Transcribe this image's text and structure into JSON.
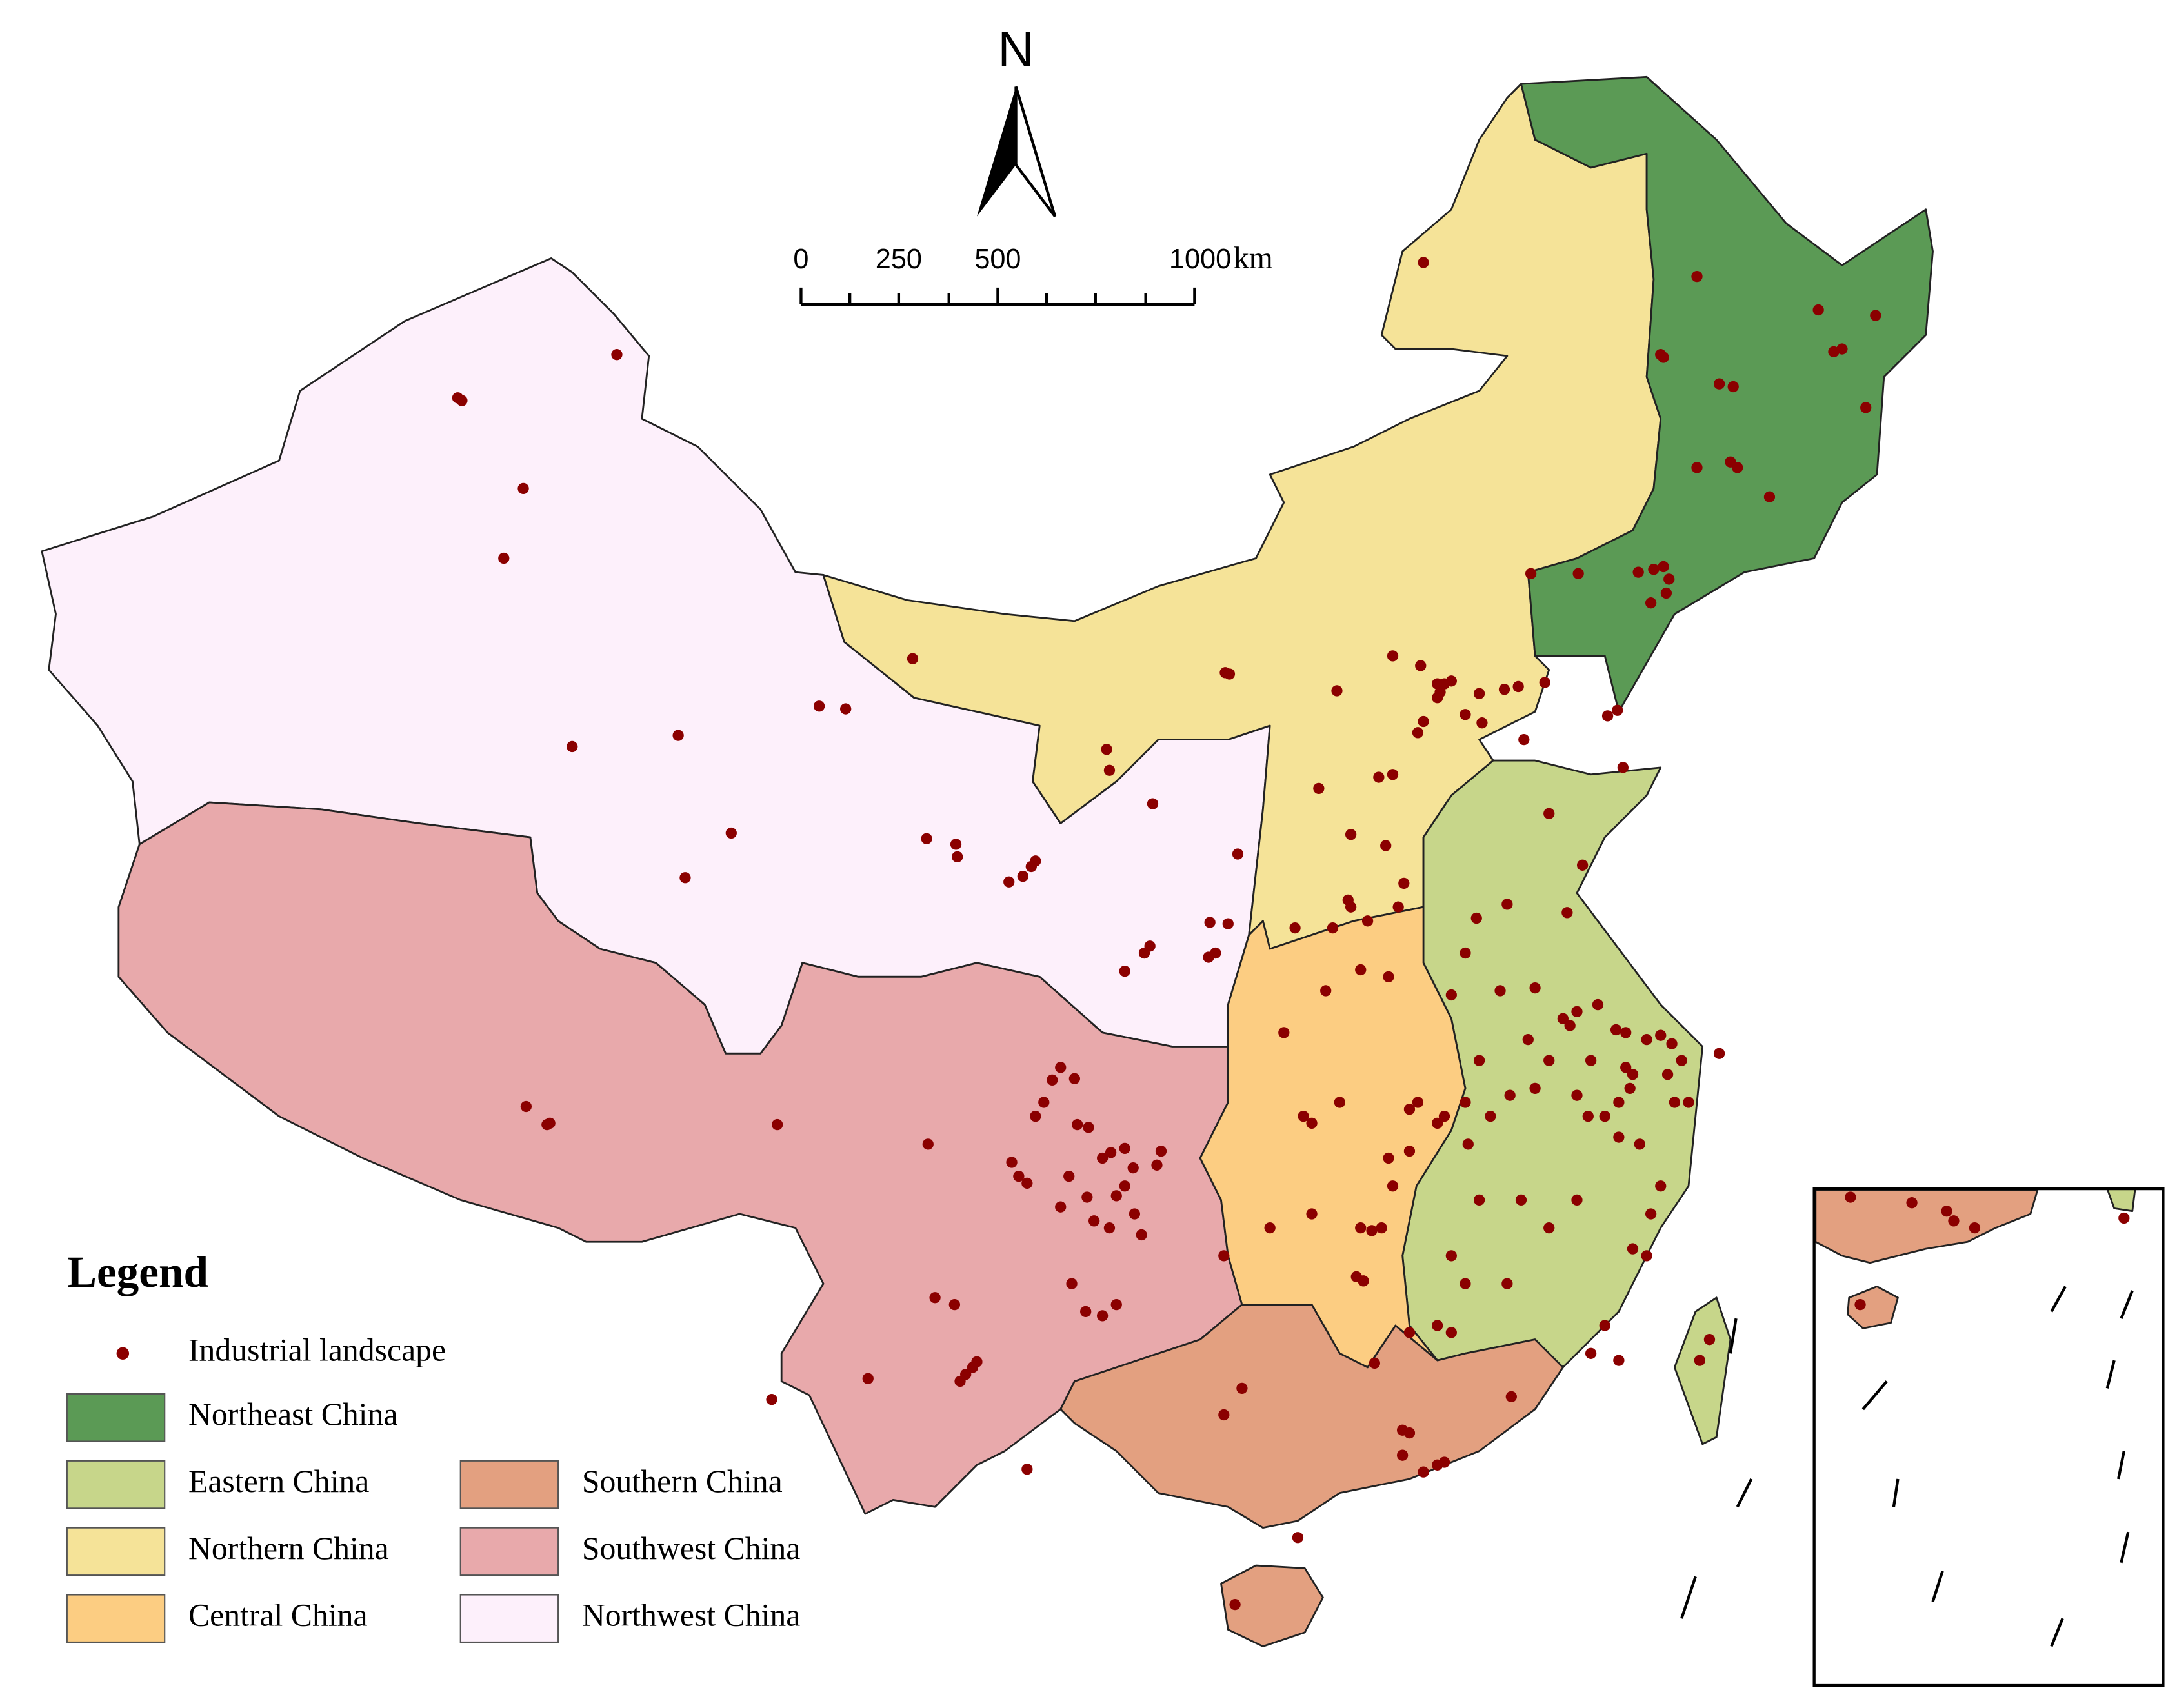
{
  "north_arrow": {
    "label": "N"
  },
  "scale_bar": {
    "labels": [
      "0",
      "250",
      "500",
      "1000"
    ],
    "unit": "km"
  },
  "legend": {
    "title": "Legend",
    "point_label": "Industrial landscape",
    "point_color": "#8b0000",
    "regions": [
      {
        "name": "Northeast China",
        "color": "#5b9a55"
      },
      {
        "name": "Eastern China",
        "color": "#c7d68a"
      },
      {
        "name": "Northern China",
        "color": "#f5e398"
      },
      {
        "name": "Central China",
        "color": "#fccd82"
      },
      {
        "name": "Southern China",
        "color": "#e3a080"
      },
      {
        "name": "Southwest China",
        "color": "#e8a9ab"
      },
      {
        "name": "Northwest China",
        "color": "#fdf0fb"
      }
    ]
  }
}
